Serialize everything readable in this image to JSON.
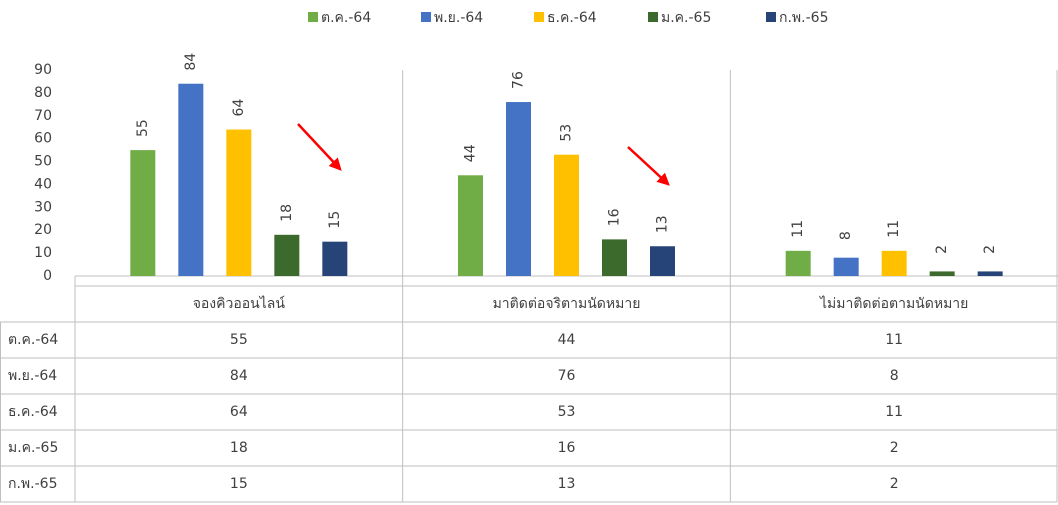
{
  "chart_data": {
    "type": "bar",
    "categories": [
      "จองคิวออนไลน์",
      "มาติดต่อจริตามนัดหมาย",
      "ไม่มาติดต่อตามนัดหมาย"
    ],
    "series": [
      {
        "name": "ต.ค.-64",
        "color": "#70ad47",
        "values": [
          55,
          44,
          11
        ]
      },
      {
        "name": "พ.ย.-64",
        "color": "#4472c4",
        "values": [
          84,
          76,
          8
        ]
      },
      {
        "name": "ธ.ค.-64",
        "color": "#ffc000",
        "values": [
          64,
          53,
          11
        ]
      },
      {
        "name": "ม.ค.-65",
        "color": "#3b6a2c",
        "values": [
          18,
          16,
          2
        ]
      },
      {
        "name": "ก.พ.-65",
        "color": "#264478",
        "values": [
          15,
          13,
          2
        ]
      }
    ],
    "ylim": [
      0,
      90
    ],
    "yticks": [
      0,
      10,
      20,
      30,
      40,
      50,
      60,
      70,
      80,
      90
    ],
    "legend": "top",
    "data_table": true
  }
}
